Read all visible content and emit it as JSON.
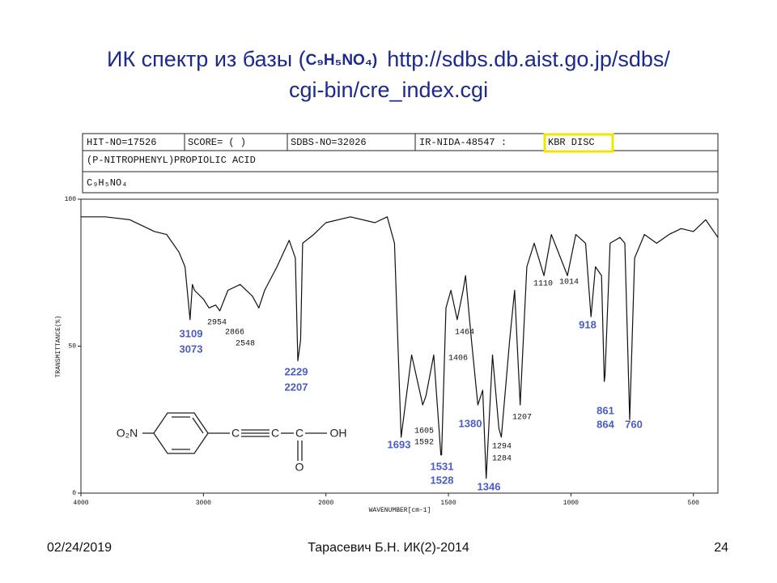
{
  "slide": {
    "title_prefix": "ИК спектр из базы (",
    "title_formula": "C₉H₅NO₄)",
    "url_line1": "http://sdbs.db.aist.go.jp/sdbs/",
    "url_line2": "cgi-bin/cre_index.cgi",
    "footer_date": "02/24/2019",
    "footer_center": "Тарасевич Б.Н. ИК(2)-2014",
    "footer_page": "24"
  },
  "header": {
    "hit_no": "HIT-NO=17526",
    "score": "SCORE=  (   )",
    "sdbs_no": "SDBS-NO=32026",
    "ir_nida": "IR-NIDA-48547 :",
    "sample": "KBR DISC",
    "compound": "(P-NITROPHENYL)PROPIOLIC ACID",
    "formula": "C₉H₅NO₄"
  },
  "structure": {
    "labels": [
      "O₂N",
      "C",
      "C",
      "C",
      "OH",
      "O"
    ]
  },
  "chart_data": {
    "type": "line",
    "x_label": "WAVENUMBER[cm-1]",
    "y_label": "TRANSMITTANCE(%)",
    "xlim": [
      4000,
      400
    ],
    "xticks": [
      4000,
      3000,
      2000,
      1500,
      1000,
      500
    ],
    "ylim": [
      0,
      100
    ],
    "yticks": [
      0,
      50,
      100
    ],
    "series": [
      {
        "name": "IR spectrum",
        "color": "#111111",
        "x": [
          4000,
          3800,
          3600,
          3400,
          3300,
          3200,
          3150,
          3109,
          3090,
          3073,
          3000,
          2954,
          2900,
          2866,
          2800,
          2700,
          2600,
          2548,
          2500,
          2400,
          2300,
          2250,
          2229,
          2207,
          2190,
          2100,
          2000,
          1900,
          1800,
          1750,
          1720,
          1693,
          1650,
          1605,
          1592,
          1560,
          1531,
          1528,
          1510,
          1490,
          1464,
          1440,
          1430,
          1406,
          1380,
          1360,
          1346,
          1320,
          1294,
          1284,
          1250,
          1230,
          1207,
          1180,
          1150,
          1110,
          1080,
          1014,
          980,
          940,
          918,
          900,
          875,
          864,
          861,
          840,
          800,
          780,
          760,
          740,
          700,
          650,
          600,
          550,
          500,
          450,
          400
        ],
        "values": [
          94,
          94,
          93,
          89,
          88,
          82,
          77,
          59,
          71,
          69,
          66,
          63,
          64,
          62,
          69,
          71,
          67,
          63,
          69,
          77,
          86,
          80,
          45,
          52,
          85,
          88,
          92,
          94,
          92,
          94,
          85,
          19,
          47,
          30,
          33,
          47,
          13,
          13,
          63,
          69,
          59,
          69,
          74,
          52,
          30,
          35,
          5,
          47,
          22,
          19,
          52,
          69,
          30,
          77,
          85,
          74,
          88,
          74,
          88,
          85,
          60,
          77,
          74,
          38,
          40,
          85,
          87,
          85,
          25,
          80,
          88,
          85,
          88,
          90,
          89,
          93,
          87
        ]
      }
    ],
    "annotations": [
      "3109",
      "3073",
      "2954",
      "2866",
      "2548",
      "2229",
      "2207",
      "1693",
      "1605",
      "1592",
      "1531",
      "1528",
      "1464",
      "1406",
      "1380",
      "1346",
      "1294",
      "1284",
      "1207",
      "1110",
      "1014",
      "918",
      "861",
      "864",
      "760"
    ]
  }
}
